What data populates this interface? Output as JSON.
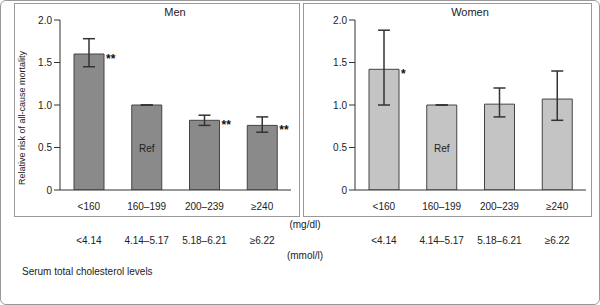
{
  "chart_data": [
    {
      "type": "bar",
      "title": "Men",
      "ylabel": "Relative risk of all-cause mortality",
      "xlabel": "Serum total cholesterol levels",
      "x_units": [
        "(mg/dl)",
        "(mmol/l)"
      ],
      "categories": [
        "<160",
        "160–199",
        "200–239",
        "≥240"
      ],
      "categories_mmol": [
        "<4.14",
        "4.14–5.17",
        "5.18–6.21",
        "≥6.22"
      ],
      "values": [
        1.6,
        1.0,
        0.82,
        0.76
      ],
      "errors": [
        [
          1.45,
          1.78
        ],
        null,
        [
          0.76,
          0.88
        ],
        [
          0.68,
          0.86
        ]
      ],
      "significance": [
        "**",
        null,
        "**",
        "**"
      ],
      "bar_labels": [
        null,
        "Ref",
        null,
        null
      ],
      "color": "#8a8a8a",
      "ylim": [
        0,
        2
      ],
      "yticks": [
        0,
        0.5,
        {
          "value": 1,
          "label": "1.0"
        },
        1.5,
        {
          "value": 2,
          "label": "2.0"
        }
      ]
    },
    {
      "type": "bar",
      "title": "Women",
      "categories": [
        "<160",
        "160–199",
        "200–239",
        "≥240"
      ],
      "values": [
        1.42,
        1.0,
        1.01,
        1.07
      ],
      "errors": [
        [
          1.0,
          1.88
        ],
        null,
        [
          0.86,
          1.2
        ],
        [
          0.82,
          1.4
        ]
      ],
      "significance": [
        "*",
        null,
        null,
        null
      ],
      "bar_labels": [
        null,
        "Ref",
        null,
        null
      ],
      "color": "#c4c4c4",
      "ylim": [
        0,
        2
      ],
      "yticks": [
        0,
        0.5,
        {
          "value": 1,
          "label": "1.0"
        },
        1.5,
        {
          "value": 2,
          "label": "2.0"
        }
      ]
    }
  ]
}
